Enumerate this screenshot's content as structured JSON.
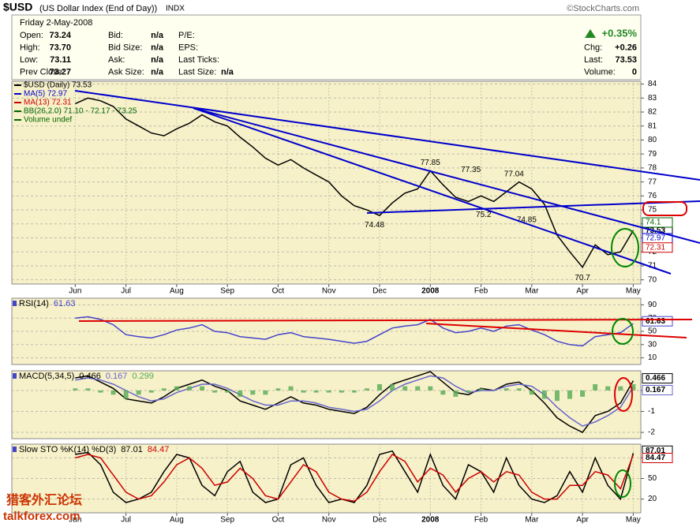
{
  "header": {
    "title": "$USD",
    "subtitle": "(US Dollar Index (End of Day))",
    "exchange": "INDX",
    "source": "©StockCharts.com",
    "date": "Friday  2-May-2008",
    "change_pct": "+0.35%",
    "columns": [
      [
        [
          "Open:",
          "73.24"
        ],
        [
          "High:",
          "73.70"
        ],
        [
          "Low:",
          "73.11"
        ],
        [
          "Prev Close:",
          "73.27"
        ]
      ],
      [
        [
          "Bid:",
          "n/a"
        ],
        [
          "Bid Size:",
          "n/a"
        ],
        [
          "Ask:",
          "n/a"
        ],
        [
          "Ask Size:",
          "n/a"
        ]
      ],
      [
        [
          "P/E:"
        ],
        [
          "EPS:"
        ],
        [
          "Last Ticks:"
        ],
        [
          "Last Size:",
          "n/a"
        ]
      ],
      [
        [
          "Chg:",
          "+0.26"
        ],
        [
          "Last:",
          "73.53"
        ],
        [
          "Volume:",
          "0"
        ]
      ]
    ]
  },
  "watermark": [
    "猎客外汇论坛",
    "talkforex.com"
  ],
  "chart_data": [
    {
      "type": "line",
      "x": [
        0,
        0.25,
        0.5,
        0.75,
        1,
        1.25,
        1.5,
        1.75,
        2,
        2.25,
        2.5,
        2.75,
        3,
        3.25,
        3.5,
        3.75,
        4,
        4.25,
        4.5,
        4.75,
        5,
        5.25,
        5.5,
        5.75,
        6,
        6.25,
        6.5,
        6.75,
        7,
        7.25,
        7.5,
        7.75,
        8,
        8.25,
        8.5,
        8.75,
        9,
        9.25,
        9.5,
        9.75,
        10,
        10.25,
        10.5,
        10.75,
        11
      ],
      "series": [
        {
          "name": "$USD (Daily) 73.53",
          "color": "#000000",
          "values": [
            82.6,
            83.0,
            82.8,
            82.4,
            81.5,
            81.0,
            80.5,
            80.3,
            80.8,
            81.2,
            81.8,
            81.3,
            81.0,
            80.2,
            79.5,
            78.7,
            78.2,
            78.6,
            78.0,
            77.5,
            77.0,
            76.0,
            75.3,
            75.0,
            74.6,
            75.5,
            76.2,
            76.5,
            77.8,
            76.8,
            75.9,
            75.6,
            76.0,
            75.6,
            76.3,
            77.0,
            76.5,
            75.4,
            73.2,
            72.0,
            70.9,
            72.5,
            71.8,
            72.0,
            73.53
          ]
        }
      ],
      "legend": [
        {
          "label": "MA(5) 72.97",
          "color": "#0000cc"
        },
        {
          "label": "MA(13) 72.31",
          "color": "#cc0000"
        },
        {
          "label": "BB(26,2.0) 71.10 - 72.17 - 73.25",
          "color": "#006600"
        },
        {
          "label": "Volume undef",
          "color": "#006600"
        }
      ],
      "right_labels": [
        {
          "value": 72.97,
          "color": "#0000cc"
        },
        {
          "value": 72.31,
          "color": "#cc0000"
        },
        {
          "value": 74.1,
          "color": "#006600"
        }
      ],
      "annotations": [
        {
          "x": 7.0,
          "value": 77.85
        },
        {
          "x": 7.8,
          "value": 77.35
        },
        {
          "x": 8.65,
          "value": 77.04
        },
        {
          "x": 8.05,
          "value": 75.2
        },
        {
          "x": 8.9,
          "value": 74.85
        },
        {
          "x": 5.9,
          "value": 74.48
        },
        {
          "x": 10.0,
          "value": 70.7
        }
      ],
      "xlim": [
        -1.25,
        11.15
      ],
      "xticks": [
        {
          "value": 0,
          "label": "Jun"
        },
        {
          "value": 1,
          "label": "Jul"
        },
        {
          "value": 2,
          "label": "Aug"
        },
        {
          "value": 3,
          "label": "Sep"
        },
        {
          "value": 4,
          "label": "Oct"
        },
        {
          "value": 5,
          "label": "Nov"
        },
        {
          "value": 6,
          "label": "Dec"
        },
        {
          "value": 7,
          "label": "2008"
        },
        {
          "value": 8,
          "label": "Feb"
        },
        {
          "value": 9,
          "label": "Mar"
        },
        {
          "value": 10,
          "label": "Apr"
        },
        {
          "value": 11,
          "label": "May"
        }
      ],
      "ylim": [
        69.7,
        84.2
      ],
      "yticks": [
        70,
        71,
        72,
        73,
        74,
        75,
        76,
        77,
        78,
        79,
        80,
        81,
        82,
        83,
        84
      ],
      "grid": true
    },
    {
      "type": "line",
      "title": "RSI(14)",
      "x": [
        0,
        0.25,
        0.5,
        0.75,
        1,
        1.25,
        1.5,
        1.75,
        2,
        2.25,
        2.5,
        2.75,
        3,
        3.25,
        3.5,
        3.75,
        4,
        4.25,
        4.5,
        4.75,
        5,
        5.25,
        5.5,
        5.75,
        6,
        6.25,
        6.5,
        6.75,
        7,
        7.25,
        7.5,
        7.75,
        8,
        8.25,
        8.5,
        8.75,
        9,
        9.25,
        9.5,
        9.75,
        10,
        10.25,
        10.5,
        10.75,
        11
      ],
      "series": [
        {
          "name": "61.63",
          "color": "#4444cc",
          "values": [
            70,
            72,
            68,
            60,
            45,
            42,
            40,
            45,
            52,
            55,
            60,
            50,
            48,
            42,
            40,
            38,
            45,
            48,
            42,
            40,
            38,
            35,
            32,
            35,
            45,
            55,
            58,
            60,
            68,
            55,
            48,
            50,
            55,
            50,
            58,
            60,
            52,
            45,
            35,
            30,
            28,
            42,
            45,
            48,
            61.63
          ]
        }
      ],
      "xlim": [
        -1.25,
        11.15
      ],
      "ylim": [
        0,
        100
      ],
      "yticks": [
        10,
        30,
        50,
        70,
        90
      ],
      "grid": true
    },
    {
      "type": "line",
      "title": "MACD(5,34,5)",
      "x": [
        0,
        0.25,
        0.5,
        0.75,
        1,
        1.25,
        1.5,
        1.75,
        2,
        2.25,
        2.5,
        2.75,
        3,
        3.25,
        3.5,
        3.75,
        4,
        4.25,
        4.5,
        4.75,
        5,
        5.25,
        5.5,
        5.75,
        6,
        6.25,
        6.5,
        6.75,
        7,
        7.25,
        7.5,
        7.75,
        8,
        8.25,
        8.5,
        8.75,
        9,
        9.25,
        9.5,
        9.75,
        10,
        10.25,
        10.5,
        10.75,
        11
      ],
      "series": [
        {
          "name": "0.466",
          "color": "#000000",
          "values": [
            0.6,
            0.7,
            0.4,
            0.1,
            -0.4,
            -0.5,
            -0.6,
            -0.3,
            0.1,
            0.3,
            0.5,
            0.2,
            0,
            -0.5,
            -0.7,
            -0.9,
            -0.6,
            -0.3,
            -0.6,
            -0.7,
            -0.9,
            -1.0,
            -1.1,
            -0.8,
            -0.2,
            0.3,
            0.5,
            0.7,
            0.9,
            0.4,
            -0.1,
            -0.2,
            0.1,
            0,
            0.3,
            0.4,
            0,
            -0.6,
            -1.3,
            -1.7,
            -2.0,
            -1.2,
            -1.0,
            -0.6,
            0.466
          ]
        },
        {
          "name": "0.167",
          "color": "#6666cc",
          "values": [
            0.5,
            0.6,
            0.5,
            0.3,
            0,
            -0.3,
            -0.5,
            -0.4,
            -0.1,
            0.1,
            0.3,
            0.3,
            0.1,
            -0.2,
            -0.5,
            -0.7,
            -0.7,
            -0.5,
            -0.5,
            -0.6,
            -0.8,
            -0.9,
            -1.0,
            -0.9,
            -0.5,
            0,
            0.3,
            0.5,
            0.7,
            0.6,
            0.2,
            -0.1,
            0,
            0,
            0.2,
            0.3,
            0.2,
            -0.2,
            -0.8,
            -1.3,
            -1.7,
            -1.5,
            -1.2,
            -0.8,
            0.167
          ]
        },
        {
          "name": "0.299",
          "color": "#55aa55",
          "style": "bar",
          "values": [
            0.1,
            0.1,
            -0.1,
            -0.2,
            -0.4,
            -0.2,
            -0.1,
            0.1,
            0.2,
            0.2,
            0.2,
            -0.1,
            -0.1,
            -0.3,
            -0.2,
            -0.2,
            0.1,
            0.2,
            -0.1,
            -0.1,
            -0.1,
            -0.1,
            -0.1,
            0.1,
            0.3,
            0.3,
            0.2,
            0.2,
            0.2,
            -0.2,
            -0.3,
            -0.1,
            0.1,
            0,
            0.1,
            0.1,
            -0.2,
            -0.4,
            -0.5,
            -0.4,
            -0.3,
            0.3,
            0.2,
            0.2,
            0.299
          ]
        }
      ],
      "xlim": [
        -1.25,
        11.15
      ],
      "ylim": [
        -2.3,
        0.94
      ],
      "yticks": [
        0,
        -1,
        -2
      ],
      "grid": true
    },
    {
      "type": "line",
      "title": "Slow STO %K(14) %D(3)",
      "x": [
        0,
        0.25,
        0.5,
        0.75,
        1,
        1.25,
        1.5,
        1.75,
        2,
        2.25,
        2.5,
        2.75,
        3,
        3.25,
        3.5,
        3.75,
        4,
        4.25,
        4.5,
        4.75,
        5,
        5.25,
        5.5,
        5.75,
        6,
        6.25,
        6.5,
        6.75,
        7,
        7.25,
        7.5,
        7.75,
        8,
        8.25,
        8.5,
        8.75,
        9,
        9.25,
        9.5,
        9.75,
        10,
        10.25,
        10.5,
        10.75,
        11
      ],
      "series": [
        {
          "name": "87.01",
          "color": "#000000",
          "values": [
            85,
            88,
            70,
            30,
            15,
            20,
            30,
            60,
            85,
            80,
            40,
            25,
            60,
            75,
            30,
            15,
            20,
            70,
            80,
            40,
            15,
            20,
            15,
            40,
            85,
            90,
            60,
            30,
            85,
            40,
            20,
            70,
            60,
            30,
            80,
            40,
            20,
            15,
            25,
            60,
            30,
            80,
            40,
            20,
            87.01
          ]
        },
        {
          "name": "84.47",
          "color": "#cc0000",
          "values": [
            80,
            85,
            80,
            55,
            30,
            20,
            25,
            45,
            70,
            80,
            65,
            40,
            45,
            65,
            50,
            25,
            20,
            45,
            70,
            60,
            30,
            20,
            17,
            30,
            60,
            85,
            75,
            45,
            65,
            55,
            30,
            50,
            60,
            45,
            60,
            55,
            30,
            20,
            20,
            40,
            40,
            60,
            55,
            35,
            84.47
          ]
        }
      ],
      "xlim": [
        -1.25,
        11.15
      ],
      "xticks": [
        {
          "value": 0,
          "label": "Jun"
        },
        {
          "value": 1,
          "label": "Jul"
        },
        {
          "value": 2,
          "label": "Aug"
        },
        {
          "value": 3,
          "label": "Sep"
        },
        {
          "value": 4,
          "label": "Oct"
        },
        {
          "value": 5,
          "label": "Nov"
        },
        {
          "value": 6,
          "label": "Dec"
        },
        {
          "value": 7,
          "label": "2008"
        },
        {
          "value": 8,
          "label": "Feb"
        },
        {
          "value": 9,
          "label": "Mar"
        },
        {
          "value": 10,
          "label": "Apr"
        },
        {
          "value": 11,
          "label": "May"
        }
      ],
      "ylim": [
        0,
        100
      ],
      "yticks": [
        20,
        50,
        80
      ],
      "grid": true
    }
  ]
}
